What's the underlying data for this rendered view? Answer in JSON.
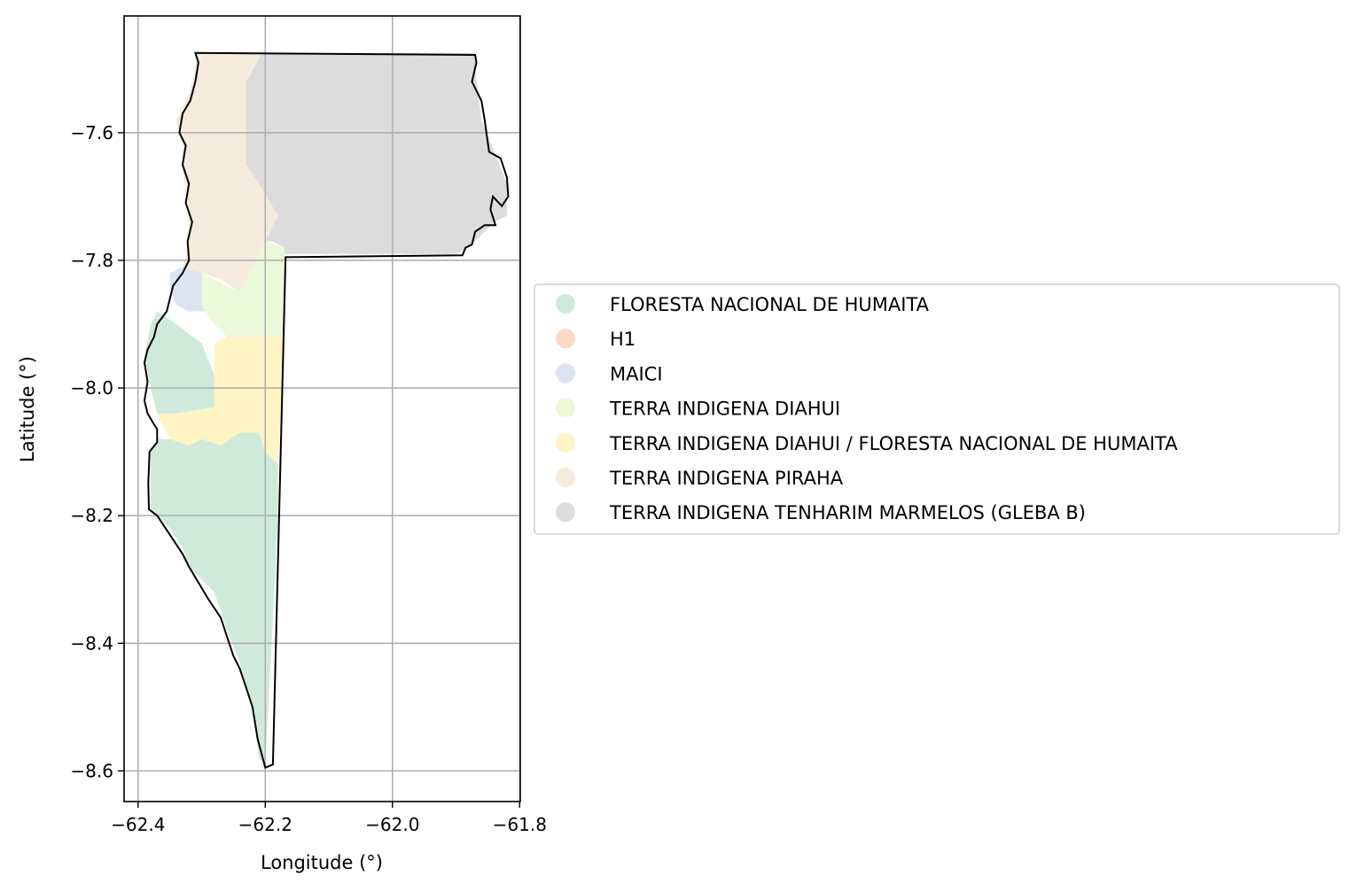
{
  "chart_data": {
    "type": "map",
    "xlabel": "Longitude (°)",
    "ylabel": "Latitude (°)",
    "xlim": [
      -62.422,
      -61.799
    ],
    "ylim": [
      -8.648,
      -7.417
    ],
    "x_ticks": [
      -62.4,
      -62.2,
      -62.0,
      -61.8
    ],
    "x_tick_labels": [
      "−62.4",
      "−62.2",
      "−62.0",
      "−61.8"
    ],
    "y_ticks": [
      -7.6,
      -7.8,
      -8.0,
      -8.2,
      -8.4,
      -8.6
    ],
    "y_tick_labels": [
      "−7.6",
      "−7.8",
      "−8.0",
      "−8.2",
      "−8.4",
      "−8.6"
    ],
    "grid": true,
    "legend_placement": "center-right outside",
    "legend": [
      {
        "label": "FLORESTA NACIONAL DE HUMAITA",
        "color": "#cfeadb"
      },
      {
        "label": "H1",
        "color": "#fdd8c3"
      },
      {
        "label": "MAICI",
        "color": "#dde3f1"
      },
      {
        "label": "TERRA INDIGENA DIAHUI",
        "color": "#ebf8da"
      },
      {
        "label": "TERRA INDIGENA DIAHUI / FLORESTA NACIONAL DE HUMAITA",
        "color": "#fff4c4"
      },
      {
        "label": "TERRA INDIGENA PIRAHA",
        "color": "#f5ebdc"
      },
      {
        "label": "TERRA INDIGENA TENHARIM MARMELOS (GLEBA B)",
        "color": "#dcdcdc"
      }
    ],
    "regions": [
      {
        "name": "TERRA INDIGENA TENHARIM MARMELOS (GLEBA B)",
        "color": "#dcdcdc",
        "lonlat": [
          [
            -62.205,
            -7.475
          ],
          [
            -61.87,
            -7.475
          ],
          [
            -61.87,
            -7.5
          ],
          [
            -61.86,
            -7.58
          ],
          [
            -61.84,
            -7.63
          ],
          [
            -61.82,
            -7.68
          ],
          [
            -61.82,
            -7.73
          ],
          [
            -61.84,
            -7.74
          ],
          [
            -61.88,
            -7.78
          ],
          [
            -61.9,
            -7.79
          ],
          [
            -62.17,
            -7.79
          ],
          [
            -62.17,
            -7.78
          ],
          [
            -62.19,
            -7.77
          ],
          [
            -62.2,
            -7.77
          ],
          [
            -62.18,
            -7.73
          ],
          [
            -62.21,
            -7.68
          ],
          [
            -62.23,
            -7.65
          ],
          [
            -62.23,
            -7.55
          ],
          [
            -62.23,
            -7.52
          ]
        ]
      },
      {
        "name": "TERRA INDIGENA PIRAHA",
        "color": "#f5ebdc",
        "lonlat": [
          [
            -62.31,
            -7.475
          ],
          [
            -62.205,
            -7.475
          ],
          [
            -62.23,
            -7.52
          ],
          [
            -62.23,
            -7.55
          ],
          [
            -62.23,
            -7.65
          ],
          [
            -62.21,
            -7.68
          ],
          [
            -62.18,
            -7.73
          ],
          [
            -62.2,
            -7.77
          ],
          [
            -62.24,
            -7.85
          ],
          [
            -62.27,
            -7.83
          ],
          [
            -62.3,
            -7.82
          ],
          [
            -62.33,
            -7.81
          ],
          [
            -62.32,
            -7.78
          ],
          [
            -62.32,
            -7.72
          ],
          [
            -62.33,
            -7.66
          ],
          [
            -62.33,
            -7.62
          ],
          [
            -62.34,
            -7.58
          ],
          [
            -62.32,
            -7.54
          ],
          [
            -62.31,
            -7.5
          ]
        ]
      },
      {
        "name": "MAICI",
        "color": "#dde3f1",
        "lonlat": [
          [
            -62.33,
            -7.81
          ],
          [
            -62.3,
            -7.82
          ],
          [
            -62.29,
            -7.84
          ],
          [
            -62.29,
            -7.88
          ],
          [
            -62.32,
            -7.88
          ],
          [
            -62.34,
            -7.87
          ],
          [
            -62.35,
            -7.84
          ],
          [
            -62.35,
            -7.82
          ]
        ]
      },
      {
        "name": "TERRA INDIGENA DIAHUI",
        "color": "#ebf8da",
        "lonlat": [
          [
            -62.3,
            -7.82
          ],
          [
            -62.24,
            -7.85
          ],
          [
            -62.2,
            -7.77
          ],
          [
            -62.17,
            -7.78
          ],
          [
            -62.17,
            -7.92
          ],
          [
            -62.22,
            -7.92
          ],
          [
            -62.26,
            -7.92
          ],
          [
            -62.28,
            -7.9
          ],
          [
            -62.3,
            -7.87
          ],
          [
            -62.3,
            -7.84
          ]
        ]
      },
      {
        "name": "TERRA INDIGENA DIAHUI / FLORESTA NACIONAL DE HUMAITA",
        "color": "#fff4c4",
        "lonlat": [
          [
            -62.26,
            -7.92
          ],
          [
            -62.17,
            -7.92
          ],
          [
            -62.18,
            -8.12
          ],
          [
            -62.2,
            -8.1
          ],
          [
            -62.21,
            -8.07
          ],
          [
            -62.24,
            -8.07
          ],
          [
            -62.27,
            -8.09
          ],
          [
            -62.3,
            -8.08
          ],
          [
            -62.32,
            -8.09
          ],
          [
            -62.35,
            -8.08
          ],
          [
            -62.37,
            -8.04
          ],
          [
            -62.34,
            -8.04
          ],
          [
            -62.28,
            -8.03
          ],
          [
            -62.28,
            -7.98
          ],
          [
            -62.28,
            -7.93
          ]
        ]
      },
      {
        "name": "FLORESTA NACIONAL DE HUMAITA",
        "color": "#cfeadb",
        "lonlat": [
          [
            -62.37,
            -7.88
          ],
          [
            -62.34,
            -7.9
          ],
          [
            -62.3,
            -7.93
          ],
          [
            -62.28,
            -7.98
          ],
          [
            -62.28,
            -8.03
          ],
          [
            -62.34,
            -8.04
          ],
          [
            -62.37,
            -8.04
          ],
          [
            -62.38,
            -8.0
          ],
          [
            -62.39,
            -7.95
          ],
          [
            -62.38,
            -7.9
          ]
        ]
      },
      {
        "name": "FLORESTA NACIONAL DE HUMAITA",
        "color": "#cfeadb",
        "lonlat": [
          [
            -62.35,
            -8.08
          ],
          [
            -62.32,
            -8.09
          ],
          [
            -62.3,
            -8.08
          ],
          [
            -62.27,
            -8.09
          ],
          [
            -62.24,
            -8.07
          ],
          [
            -62.21,
            -8.07
          ],
          [
            -62.2,
            -8.1
          ],
          [
            -62.18,
            -8.12
          ],
          [
            -62.18,
            -8.2
          ],
          [
            -62.19,
            -8.4
          ],
          [
            -62.2,
            -8.59
          ],
          [
            -62.21,
            -8.58
          ],
          [
            -62.22,
            -8.5
          ],
          [
            -62.24,
            -8.43
          ],
          [
            -62.26,
            -8.38
          ],
          [
            -62.28,
            -8.32
          ],
          [
            -62.32,
            -8.28
          ],
          [
            -62.33,
            -8.25
          ],
          [
            -62.35,
            -8.22
          ],
          [
            -62.38,
            -8.19
          ],
          [
            -62.38,
            -8.14
          ],
          [
            -62.38,
            -8.1
          ],
          [
            -62.37,
            -8.08
          ]
        ]
      }
    ],
    "outline_lonlat": [
      [
        -62.31,
        -7.475
      ],
      [
        -61.87,
        -7.478
      ],
      [
        -61.868,
        -7.49
      ],
      [
        -61.875,
        -7.52
      ],
      [
        -61.86,
        -7.55
      ],
      [
        -61.855,
        -7.58
      ],
      [
        -61.848,
        -7.63
      ],
      [
        -61.83,
        -7.64
      ],
      [
        -61.82,
        -7.67
      ],
      [
        -61.818,
        -7.7
      ],
      [
        -61.828,
        -7.715
      ],
      [
        -61.842,
        -7.7
      ],
      [
        -61.846,
        -7.72
      ],
      [
        -61.838,
        -7.745
      ],
      [
        -61.855,
        -7.745
      ],
      [
        -61.87,
        -7.755
      ],
      [
        -61.875,
        -7.775
      ],
      [
        -61.885,
        -7.78
      ],
      [
        -61.89,
        -7.792
      ],
      [
        -62.168,
        -7.795
      ],
      [
        -62.188,
        -8.59
      ],
      [
        -62.2,
        -8.595
      ],
      [
        -62.212,
        -8.55
      ],
      [
        -62.22,
        -8.5
      ],
      [
        -62.23,
        -8.47
      ],
      [
        -62.24,
        -8.44
      ],
      [
        -62.25,
        -8.42
      ],
      [
        -62.26,
        -8.39
      ],
      [
        -62.27,
        -8.36
      ],
      [
        -62.29,
        -8.33
      ],
      [
        -62.32,
        -8.28
      ],
      [
        -62.33,
        -8.26
      ],
      [
        -62.35,
        -8.23
      ],
      [
        -62.37,
        -8.2
      ],
      [
        -62.383,
        -8.19
      ],
      [
        -62.384,
        -8.15
      ],
      [
        -62.382,
        -8.1
      ],
      [
        -62.37,
        -8.085
      ],
      [
        -62.37,
        -8.065
      ],
      [
        -62.385,
        -8.04
      ],
      [
        -62.39,
        -8.02
      ],
      [
        -62.385,
        -7.99
      ],
      [
        -62.39,
        -7.96
      ],
      [
        -62.385,
        -7.94
      ],
      [
        -62.375,
        -7.92
      ],
      [
        -62.37,
        -7.9
      ],
      [
        -62.355,
        -7.88
      ],
      [
        -62.35,
        -7.86
      ],
      [
        -62.345,
        -7.84
      ],
      [
        -62.33,
        -7.82
      ],
      [
        -62.32,
        -7.8
      ],
      [
        -62.322,
        -7.77
      ],
      [
        -62.315,
        -7.74
      ],
      [
        -62.325,
        -7.71
      ],
      [
        -62.32,
        -7.68
      ],
      [
        -62.33,
        -7.65
      ],
      [
        -62.325,
        -7.62
      ],
      [
        -62.335,
        -7.6
      ],
      [
        -62.33,
        -7.57
      ],
      [
        -62.318,
        -7.55
      ],
      [
        -62.31,
        -7.52
      ],
      [
        -62.305,
        -7.49
      ]
    ]
  }
}
